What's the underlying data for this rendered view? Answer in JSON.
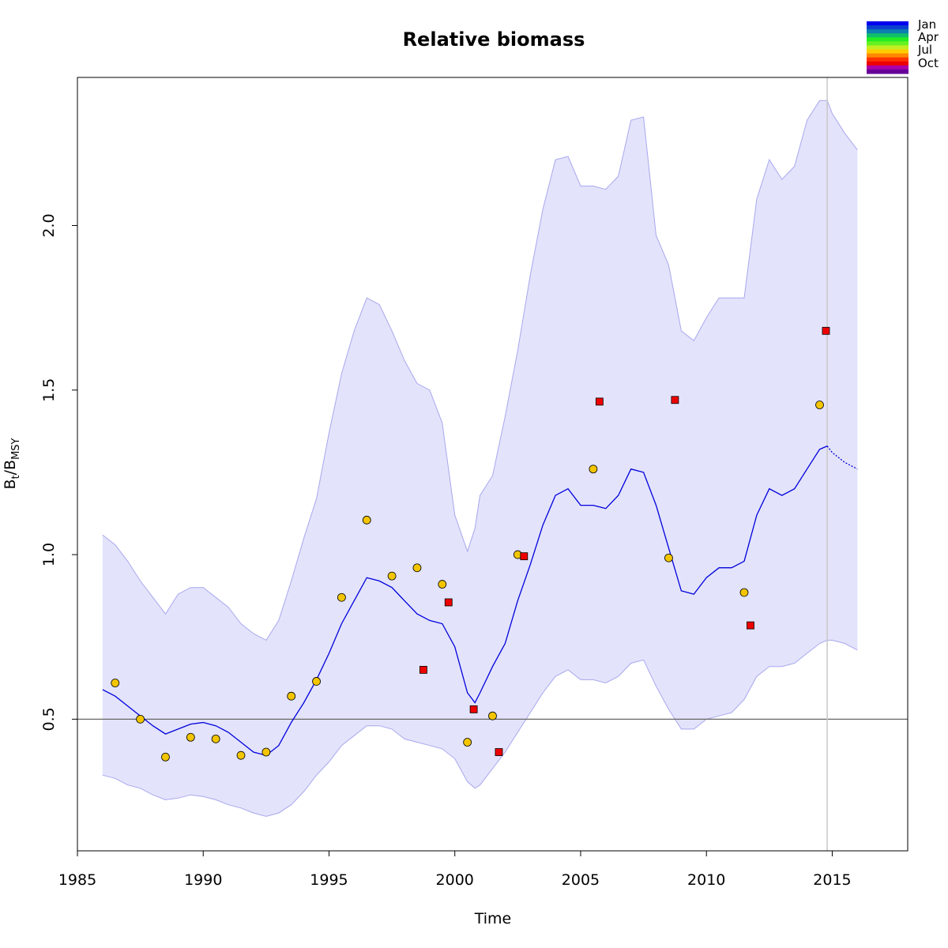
{
  "chart_data": {
    "type": "line",
    "title": "Relative biomass",
    "xlabel": "Time",
    "ylabel_main": "B",
    "ylabel_sub1": "t",
    "ylabel_sep": "/B",
    "ylabel_sub2": "MSY",
    "xlim": [
      1985,
      2018
    ],
    "ylim": [
      0.1,
      2.45
    ],
    "x_ticks": [
      1985,
      1990,
      1995,
      2000,
      2005,
      2010,
      2015
    ],
    "y_ticks": [
      0.5,
      1.0,
      1.5,
      2.0
    ],
    "y_tick_labels": [
      "0.5",
      "1.0",
      "1.5",
      "2.0"
    ],
    "reference_line_y": 0.5,
    "reference_line_color": "#666666",
    "vertical_line_x": 2014.8,
    "vertical_line_color": "#c8c8c8",
    "band_fill_color": "#e3e3fb",
    "band_edge_color": "#a8a8ee",
    "line_color": "#0000dd",
    "grid": false,
    "legend_position": "top-right",
    "month_legend": {
      "labels": [
        "Jan",
        "Apr",
        "Jul",
        "Oct"
      ],
      "colors": [
        "#0000ee",
        "#0a3fd0",
        "#0d7fb0",
        "#10bf6a",
        "#22ee22",
        "#66f222",
        "#c2ee22",
        "#ffcc00",
        "#ff8800",
        "#ff3300",
        "#ee0000",
        "#aa00aa",
        "#660099"
      ]
    },
    "series": [
      {
        "role": "estimate",
        "x": [
          1986.0,
          1986.5,
          1987.0,
          1987.5,
          1988.0,
          1988.5,
          1989.0,
          1989.5,
          1990.0,
          1990.5,
          1991.0,
          1991.5,
          1992.0,
          1992.5,
          1993.0,
          1993.5,
          1994.0,
          1994.5,
          1995.0,
          1995.5,
          1996.0,
          1996.5,
          1997.0,
          1997.5,
          1998.0,
          1998.5,
          1999.0,
          1999.5,
          2000.0,
          2000.5,
          2000.8,
          2001.0,
          2001.5,
          2002.0,
          2002.5,
          2003.0,
          2003.5,
          2004.0,
          2004.5,
          2005.0,
          2005.5,
          2006.0,
          2006.5,
          2007.0,
          2007.5,
          2008.0,
          2008.5,
          2009.0,
          2009.5,
          2010.0,
          2010.5,
          2011.0,
          2011.5,
          2012.0,
          2012.5,
          2013.0,
          2013.5,
          2014.0,
          2014.5,
          2014.8
        ],
        "y": [
          0.59,
          0.57,
          0.54,
          0.51,
          0.48,
          0.455,
          0.47,
          0.485,
          0.49,
          0.48,
          0.46,
          0.43,
          0.4,
          0.39,
          0.42,
          0.49,
          0.55,
          0.62,
          0.7,
          0.79,
          0.86,
          0.93,
          0.92,
          0.9,
          0.86,
          0.82,
          0.8,
          0.79,
          0.72,
          0.58,
          0.55,
          0.58,
          0.66,
          0.73,
          0.86,
          0.97,
          1.09,
          1.18,
          1.2,
          1.15,
          1.15,
          1.14,
          1.18,
          1.26,
          1.25,
          1.15,
          1.02,
          0.89,
          0.88,
          0.93,
          0.96,
          0.96,
          0.98,
          1.12,
          1.2,
          1.18,
          1.2,
          1.26,
          1.32,
          1.33
        ]
      },
      {
        "role": "prediction",
        "x": [
          2014.8,
          2015.0,
          2015.5,
          2016.0
        ],
        "y": [
          1.33,
          1.31,
          1.28,
          1.26
        ]
      }
    ],
    "ci_band": {
      "x": [
        1986.0,
        1986.5,
        1987.0,
        1987.5,
        1988.0,
        1988.5,
        1989.0,
        1989.5,
        1990.0,
        1990.5,
        1991.0,
        1991.5,
        1992.0,
        1992.5,
        1993.0,
        1993.5,
        1994.0,
        1994.5,
        1995.0,
        1995.5,
        1996.0,
        1996.5,
        1997.0,
        1997.5,
        1998.0,
        1998.5,
        1999.0,
        1999.5,
        2000.0,
        2000.5,
        2000.8,
        2001.0,
        2001.5,
        2002.0,
        2002.5,
        2003.0,
        2003.5,
        2004.0,
        2004.5,
        2005.0,
        2005.5,
        2006.0,
        2006.5,
        2007.0,
        2007.5,
        2008.0,
        2008.5,
        2009.0,
        2009.5,
        2010.0,
        2010.5,
        2011.0,
        2011.5,
        2012.0,
        2012.5,
        2013.0,
        2013.5,
        2014.0,
        2014.5,
        2014.8,
        2015.0,
        2015.5,
        2016.0
      ],
      "upper": [
        1.06,
        1.03,
        0.98,
        0.92,
        0.87,
        0.82,
        0.88,
        0.9,
        0.9,
        0.87,
        0.84,
        0.79,
        0.76,
        0.74,
        0.8,
        0.92,
        1.05,
        1.17,
        1.37,
        1.55,
        1.68,
        1.78,
        1.76,
        1.68,
        1.59,
        1.52,
        1.5,
        1.4,
        1.12,
        1.01,
        1.08,
        1.18,
        1.24,
        1.42,
        1.62,
        1.85,
        2.05,
        2.2,
        2.21,
        2.12,
        2.12,
        2.11,
        2.15,
        2.32,
        2.33,
        1.97,
        1.88,
        1.68,
        1.65,
        1.72,
        1.78,
        1.78,
        1.78,
        2.08,
        2.2,
        2.14,
        2.18,
        2.32,
        2.38,
        2.38,
        2.34,
        2.28,
        2.23
      ],
      "lower": [
        0.33,
        0.32,
        0.3,
        0.29,
        0.27,
        0.255,
        0.26,
        0.27,
        0.265,
        0.255,
        0.24,
        0.23,
        0.215,
        0.205,
        0.215,
        0.24,
        0.28,
        0.33,
        0.37,
        0.42,
        0.45,
        0.48,
        0.48,
        0.47,
        0.44,
        0.43,
        0.42,
        0.41,
        0.38,
        0.31,
        0.29,
        0.3,
        0.35,
        0.4,
        0.46,
        0.52,
        0.58,
        0.63,
        0.65,
        0.62,
        0.62,
        0.61,
        0.63,
        0.67,
        0.68,
        0.6,
        0.53,
        0.47,
        0.47,
        0.5,
        0.51,
        0.52,
        0.56,
        0.63,
        0.66,
        0.66,
        0.67,
        0.7,
        0.73,
        0.74,
        0.74,
        0.73,
        0.71
      ]
    },
    "observations": {
      "circles": {
        "fill": "#f2c500",
        "x": [
          1986.5,
          1987.5,
          1988.5,
          1989.5,
          1990.5,
          1991.5,
          1992.5,
          1993.5,
          1994.5,
          1995.5,
          1996.5,
          1997.5,
          1998.5,
          1999.5,
          2000.5,
          2001.5,
          2002.5,
          2005.5,
          2008.5,
          2011.5,
          2014.5
        ],
        "y": [
          0.61,
          0.5,
          0.385,
          0.445,
          0.44,
          0.39,
          0.4,
          0.57,
          0.615,
          0.87,
          1.105,
          0.935,
          0.96,
          0.91,
          0.43,
          0.51,
          1.0,
          1.26,
          0.99,
          0.885,
          1.455
        ]
      },
      "squares": {
        "fill": "#ee0000",
        "x": [
          1998.75,
          1999.75,
          2000.75,
          2001.75,
          2002.75,
          2005.75,
          2008.75,
          2011.75,
          2014.75
        ],
        "y": [
          0.65,
          0.855,
          0.53,
          0.4,
          0.995,
          1.465,
          1.47,
          0.785,
          1.68
        ]
      }
    }
  }
}
